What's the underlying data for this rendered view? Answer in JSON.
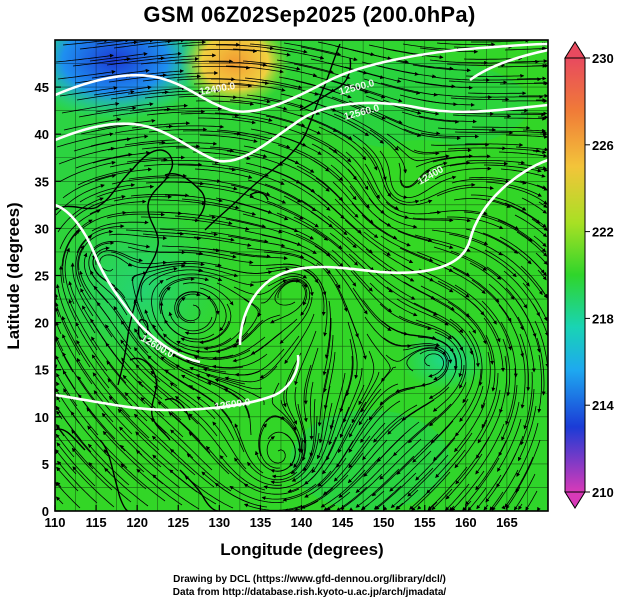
{
  "title": "GSM 06Z02Sep2025 (200.0hPa)",
  "x_axis": {
    "label": "Longitude (degrees)",
    "ticks": [
      "110",
      "115",
      "120",
      "125",
      "130",
      "135",
      "140",
      "145",
      "150",
      "155",
      "160",
      "165"
    ]
  },
  "y_axis": {
    "label": "Latitude (degrees)",
    "ticks": [
      "0",
      "5",
      "10",
      "15",
      "20",
      "25",
      "30",
      "35",
      "40",
      "45"
    ]
  },
  "colorbar": {
    "ticks": [
      "230",
      "226",
      "222",
      "218",
      "214",
      "210"
    ],
    "colors": [
      "#e84a5f",
      "#f39c32",
      "#f5e042",
      "#3ddc1f",
      "#19d4b4",
      "#1ea8f0",
      "#1b3bd6",
      "#d83ab8"
    ]
  },
  "contour_labels": [
    "12400.0",
    "12500.0",
    "12560.0",
    "12600.0",
    "12400",
    "12500.0"
  ],
  "credits": {
    "line1": "Drawing by DCL (https://www.gfd-dennou.org/library/dcl/)",
    "line2": "Data from http://database.rish.kyoto-u.ac.jp/arch/jmadata/"
  },
  "chart_data": {
    "type": "heatmap",
    "title": "GSM 06Z02Sep2025 (200.0hPa)",
    "xlabel": "Longitude (degrees)",
    "ylabel": "Latitude (degrees)",
    "xlim": [
      110,
      170
    ],
    "ylim": [
      0,
      50
    ],
    "colorbar_range": [
      210,
      230
    ],
    "colorbar_ticks": [
      210,
      214,
      218,
      222,
      226,
      230
    ],
    "overlays": [
      "streamlines",
      "geopotential height contours (white)",
      "coastlines",
      "grid"
    ]
  }
}
